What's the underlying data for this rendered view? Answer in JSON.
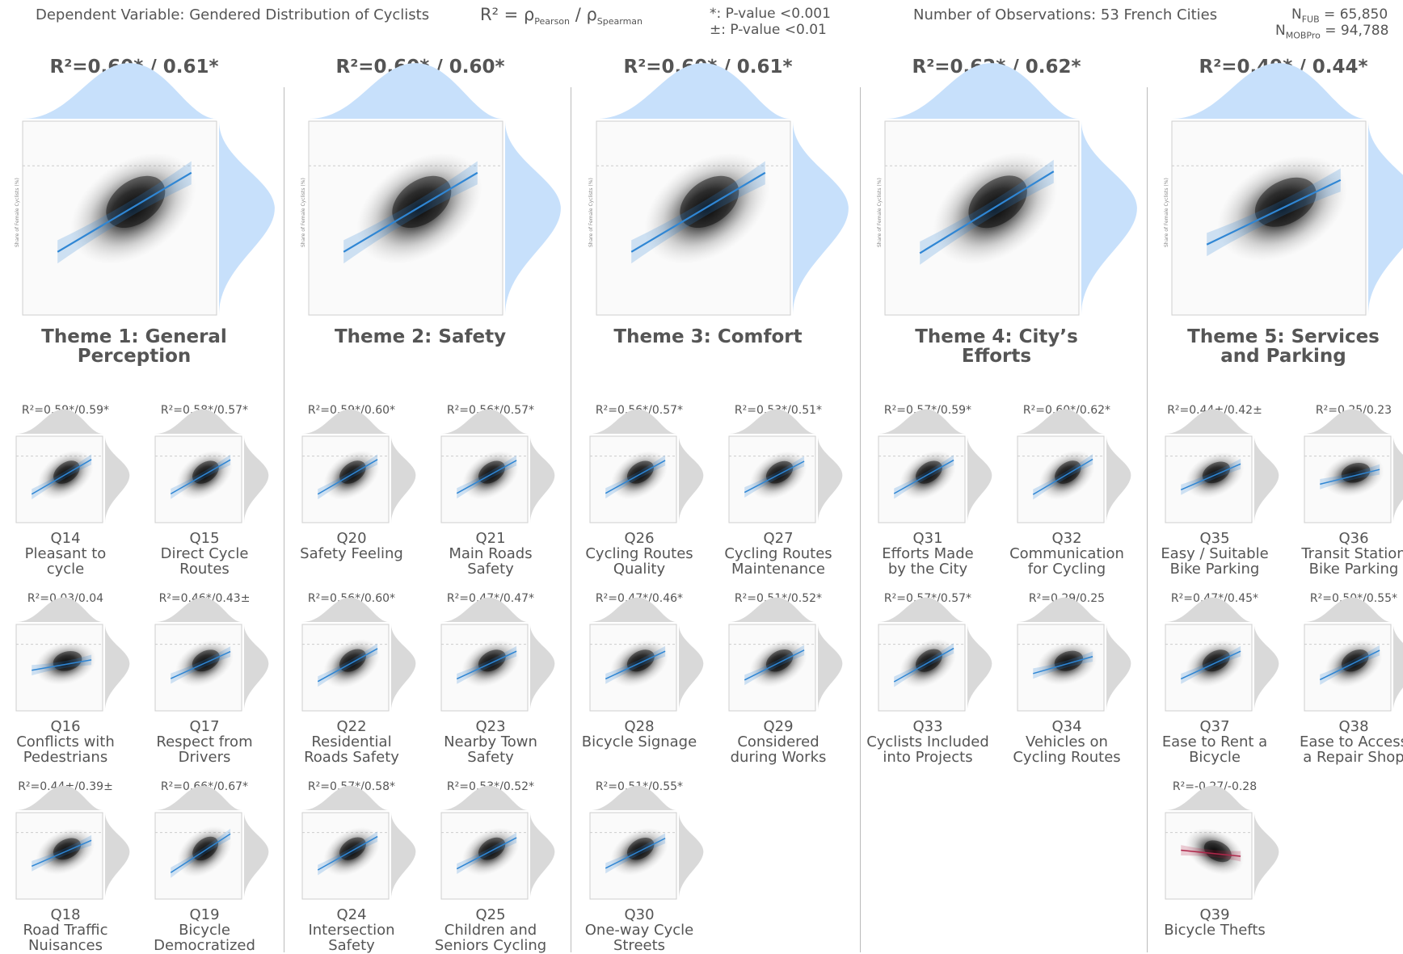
{
  "header": {
    "dependent_variable": "Dependent Variable: Gendered Distribution of Cyclists",
    "r2_def_prefix": "R² = ρ",
    "r2_def_sub1": "Pearson",
    "r2_def_slash": " / ρ",
    "r2_def_sub2": "Spearman",
    "pvalue_star": "*: P-value <0.001",
    "pvalue_pm": "±: P-value <0.01",
    "observations": "Number of Observations: 53 French Cities",
    "n_fub_label": "N",
    "n_fub_sub": "FUB",
    "n_fub_value": " = 65,850",
    "n_mob_label": "N",
    "n_mob_sub": "MOBPro",
    "n_mob_value": " = 94,788"
  },
  "colors": {
    "fit_positive": "#2f86d4",
    "fit_negative": "#b0264a",
    "marginal_theme": "#c7e0fb",
    "marginal_q": "#d9d9d9"
  },
  "chart_data": {
    "type": "scatter",
    "y_axis_label": "Share of Female Cyclists (%)",
    "themes": [
      {
        "r2": "R²=0.60* / 0.61*",
        "title_lines": [
          "Theme 1: General",
          "Perception"
        ],
        "slope": 0.6,
        "sign": "positive"
      },
      {
        "r2": "R²=0.60* / 0.60*",
        "title_lines": [
          "Theme 2: Safety"
        ],
        "slope": 0.6,
        "sign": "positive"
      },
      {
        "r2": "R²=0.60* / 0.61*",
        "title_lines": [
          "Theme 3: Comfort"
        ],
        "slope": 0.6,
        "sign": "positive"
      },
      {
        "r2": "R²=0.62* / 0.62*",
        "title_lines": [
          "Theme 4: City’s",
          "Efforts"
        ],
        "slope": 0.62,
        "sign": "positive"
      },
      {
        "r2": "R²=0.49* / 0.44*",
        "title_lines": [
          "Theme 5: Services",
          "and Parking"
        ],
        "slope": 0.49,
        "sign": "positive"
      }
    ],
    "questions": [
      {
        "theme": 1,
        "col": 0,
        "row": 0,
        "r2": "R²=0.59*/0.59*",
        "code": "Q14",
        "lines": [
          "Pleasant to",
          "cycle"
        ],
        "slope": 0.59
      },
      {
        "theme": 1,
        "col": 1,
        "row": 0,
        "r2": "R²=0.58*/0.57*",
        "code": "Q15",
        "lines": [
          "Direct Cycle",
          "Routes"
        ],
        "slope": 0.58
      },
      {
        "theme": 1,
        "col": 0,
        "row": 1,
        "r2": "R²=0.03/0.04",
        "code": "Q16",
        "lines": [
          "Conflicts with",
          "Pedestrians"
        ],
        "slope": 0.03
      },
      {
        "theme": 1,
        "col": 1,
        "row": 1,
        "r2": "R²=0.46*/0.43±",
        "code": "Q17",
        "lines": [
          "Respect from",
          "Drivers"
        ],
        "slope": 0.46
      },
      {
        "theme": 1,
        "col": 0,
        "row": 2,
        "r2": "R²=0.44±/0.39±",
        "code": "Q18",
        "lines": [
          "Road Traffic",
          "Nuisances"
        ],
        "slope": 0.44
      },
      {
        "theme": 1,
        "col": 1,
        "row": 2,
        "r2": "R²=0.66*/0.67*",
        "code": "Q19",
        "lines": [
          "Bicycle",
          "Democratized"
        ],
        "slope": 0.66
      },
      {
        "theme": 2,
        "col": 0,
        "row": 0,
        "r2": "R²=0.59*/0.60*",
        "code": "Q20",
        "lines": [
          "Safety Feeling"
        ],
        "slope": 0.59
      },
      {
        "theme": 2,
        "col": 1,
        "row": 0,
        "r2": "R²=0.56*/0.57*",
        "code": "Q21",
        "lines": [
          "Main Roads",
          "Safety"
        ],
        "slope": 0.56
      },
      {
        "theme": 2,
        "col": 0,
        "row": 1,
        "r2": "R²=0.56*/0.60*",
        "code": "Q22",
        "lines": [
          "Residential",
          "Roads Safety"
        ],
        "slope": 0.56
      },
      {
        "theme": 2,
        "col": 1,
        "row": 1,
        "r2": "R²=0.47*/0.47*",
        "code": "Q23",
        "lines": [
          "Nearby Town",
          "Safety"
        ],
        "slope": 0.47
      },
      {
        "theme": 2,
        "col": 0,
        "row": 2,
        "r2": "R²=0.57*/0.58*",
        "code": "Q24",
        "lines": [
          "Intersection",
          "Safety"
        ],
        "slope": 0.57
      },
      {
        "theme": 2,
        "col": 1,
        "row": 2,
        "r2": "R²=0.53*/0.52*",
        "code": "Q25",
        "lines": [
          "Children and",
          "Seniors Cycling"
        ],
        "slope": 0.53
      },
      {
        "theme": 3,
        "col": 0,
        "row": 0,
        "r2": "R²=0.56*/0.57*",
        "code": "Q26",
        "lines": [
          "Cycling Routes",
          "Quality"
        ],
        "slope": 0.56
      },
      {
        "theme": 3,
        "col": 1,
        "row": 0,
        "r2": "R²=0.53*/0.51*",
        "code": "Q27",
        "lines": [
          "Cycling Routes",
          "Maintenance"
        ],
        "slope": 0.53
      },
      {
        "theme": 3,
        "col": 0,
        "row": 1,
        "r2": "R²=0.47*/0.46*",
        "code": "Q28",
        "lines": [
          "Bicycle Signage"
        ],
        "slope": 0.47
      },
      {
        "theme": 3,
        "col": 1,
        "row": 1,
        "r2": "R²=0.51*/0.52*",
        "code": "Q29",
        "lines": [
          "Considered",
          "during Works"
        ],
        "slope": 0.51
      },
      {
        "theme": 3,
        "col": 0,
        "row": 2,
        "r2": "R²=0.51*/0.55*",
        "code": "Q30",
        "lines": [
          "One-way Cycle",
          "Streets"
        ],
        "slope": 0.51
      },
      {
        "theme": 4,
        "col": 0,
        "row": 0,
        "r2": "R²=0.57*/0.59*",
        "code": "Q31",
        "lines": [
          "Efforts Made",
          "by the City"
        ],
        "slope": 0.57
      },
      {
        "theme": 4,
        "col": 1,
        "row": 0,
        "r2": "R²=0.60*/0.62*",
        "code": "Q32",
        "lines": [
          "Communication",
          "for Cycling"
        ],
        "slope": 0.6
      },
      {
        "theme": 4,
        "col": 0,
        "row": 1,
        "r2": "R²=0.57*/0.57*",
        "code": "Q33",
        "lines": [
          "Cyclists Included",
          "into Projects"
        ],
        "slope": 0.57
      },
      {
        "theme": 4,
        "col": 1,
        "row": 1,
        "r2": "R²=0.29/0.25",
        "code": "Q34",
        "lines": [
          "Vehicles on",
          "Cycling Routes"
        ],
        "slope": 0.29
      },
      {
        "theme": 5,
        "col": 0,
        "row": 0,
        "r2": "R²=0.44±/0.42±",
        "code": "Q35",
        "lines": [
          "Easy / Suitable",
          "Bike Parking"
        ],
        "slope": 0.44
      },
      {
        "theme": 5,
        "col": 1,
        "row": 0,
        "r2": "R²=0.25/0.23",
        "code": "Q36",
        "lines": [
          "Transit Station",
          "Bike Parking"
        ],
        "slope": 0.25
      },
      {
        "theme": 5,
        "col": 0,
        "row": 1,
        "r2": "R²=0.47*/0.45*",
        "code": "Q37",
        "lines": [
          "Ease to Rent a",
          "Bicycle"
        ],
        "slope": 0.47
      },
      {
        "theme": 5,
        "col": 1,
        "row": 1,
        "r2": "R²=0.50*/0.55*",
        "code": "Q38",
        "lines": [
          "Ease to Access",
          "a Repair Shop"
        ],
        "slope": 0.5
      },
      {
        "theme": 5,
        "col": 0,
        "row": 2,
        "r2": "R²=-0.27/-0.28",
        "code": "Q39",
        "lines": [
          "Bicycle Thefts"
        ],
        "slope": -0.27
      }
    ]
  }
}
